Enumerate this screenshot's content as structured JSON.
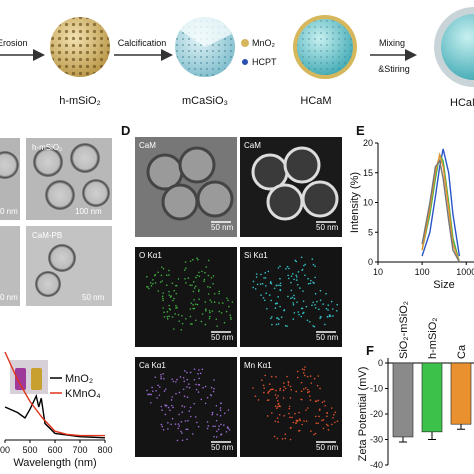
{
  "schematic": {
    "steps": [
      "Erosion",
      "Calcification",
      "Mixing",
      "&Stiring"
    ],
    "labels": [
      "h-mSiO₂",
      "mCaSiO₃",
      "HCaM",
      "HCaM"
    ],
    "legend": [
      "MnO₂",
      "HCPT"
    ]
  },
  "panel_c": {
    "labels": [
      "h-mSiO₂",
      "CaM-PB"
    ],
    "scale_bars": [
      "0 nm",
      "100 nm",
      "0 nm",
      "50 nm"
    ]
  },
  "panel_d": {
    "letter": "D",
    "labels": [
      "CaM",
      "CaM",
      "O Kα1",
      "Si Kα1",
      "Ca Kα1",
      "Mn Kα1"
    ],
    "scale_bar": "50 nm"
  },
  "chart_data": [
    {
      "type": "line",
      "xlabel": "Wavelength (nm)",
      "xlim": [
        400,
        800
      ],
      "xticks": [
        {
          "value": 400,
          "label": "00"
        },
        500,
        600,
        700,
        800
      ],
      "ylim": [
        0,
        1
      ],
      "series": [
        {
          "name": "MnO₂",
          "color": "#000000",
          "x": [
            400,
            450,
            480,
            500,
            525,
            535,
            545,
            560,
            600,
            700,
            800
          ],
          "values": [
            0.3,
            0.25,
            0.2,
            0.28,
            0.4,
            0.3,
            0.38,
            0.15,
            0.06,
            0.03,
            0.02
          ]
        },
        {
          "name": "KMnO₄",
          "color": "#e0341c",
          "x": [
            400,
            450,
            500,
            550,
            600,
            650,
            700,
            800
          ],
          "values": [
            0.8,
            0.55,
            0.35,
            0.2,
            0.08,
            0.05,
            0.04,
            0.04
          ]
        }
      ]
    },
    {
      "type": "line",
      "panel": "E",
      "xlabel": "Size",
      "ylabel": "Intensity (%)",
      "xscale": "log",
      "xlim": [
        10,
        1500
      ],
      "xticks": [
        10,
        100,
        1000
      ],
      "ylim": [
        0,
        20
      ],
      "yticks": [
        0,
        5,
        10,
        15,
        20
      ],
      "x": [
        100,
        150,
        200,
        250,
        300,
        400,
        500,
        700
      ],
      "series": [
        {
          "color": "#2a55c8",
          "values": [
            1,
            5,
            11,
            16,
            19,
            15,
            8,
            1
          ]
        },
        {
          "color": "#3cb34a",
          "values": [
            2,
            8,
            14,
            18,
            17,
            10,
            4,
            0
          ]
        },
        {
          "color": "#e8912e",
          "values": [
            2,
            9,
            15,
            18,
            16,
            9,
            3,
            0
          ]
        },
        {
          "color": "#777777",
          "values": [
            3,
            10,
            16,
            17,
            14,
            7,
            2,
            0
          ]
        }
      ]
    },
    {
      "type": "bar",
      "panel": "F",
      "ylabel": "Zeta Potential (mV)",
      "categories": [
        "SiO₂-mSiO₂",
        "h-mSiO₂",
        "Ca"
      ],
      "values": [
        -29,
        -27,
        -24
      ],
      "errors": [
        2,
        3,
        2
      ],
      "colors": [
        "#8a8a8a",
        "#3cc24a",
        "#e8912e"
      ],
      "ylim": [
        -40,
        0
      ],
      "yticks": [
        0,
        -10,
        -20,
        -30,
        -40
      ]
    }
  ]
}
